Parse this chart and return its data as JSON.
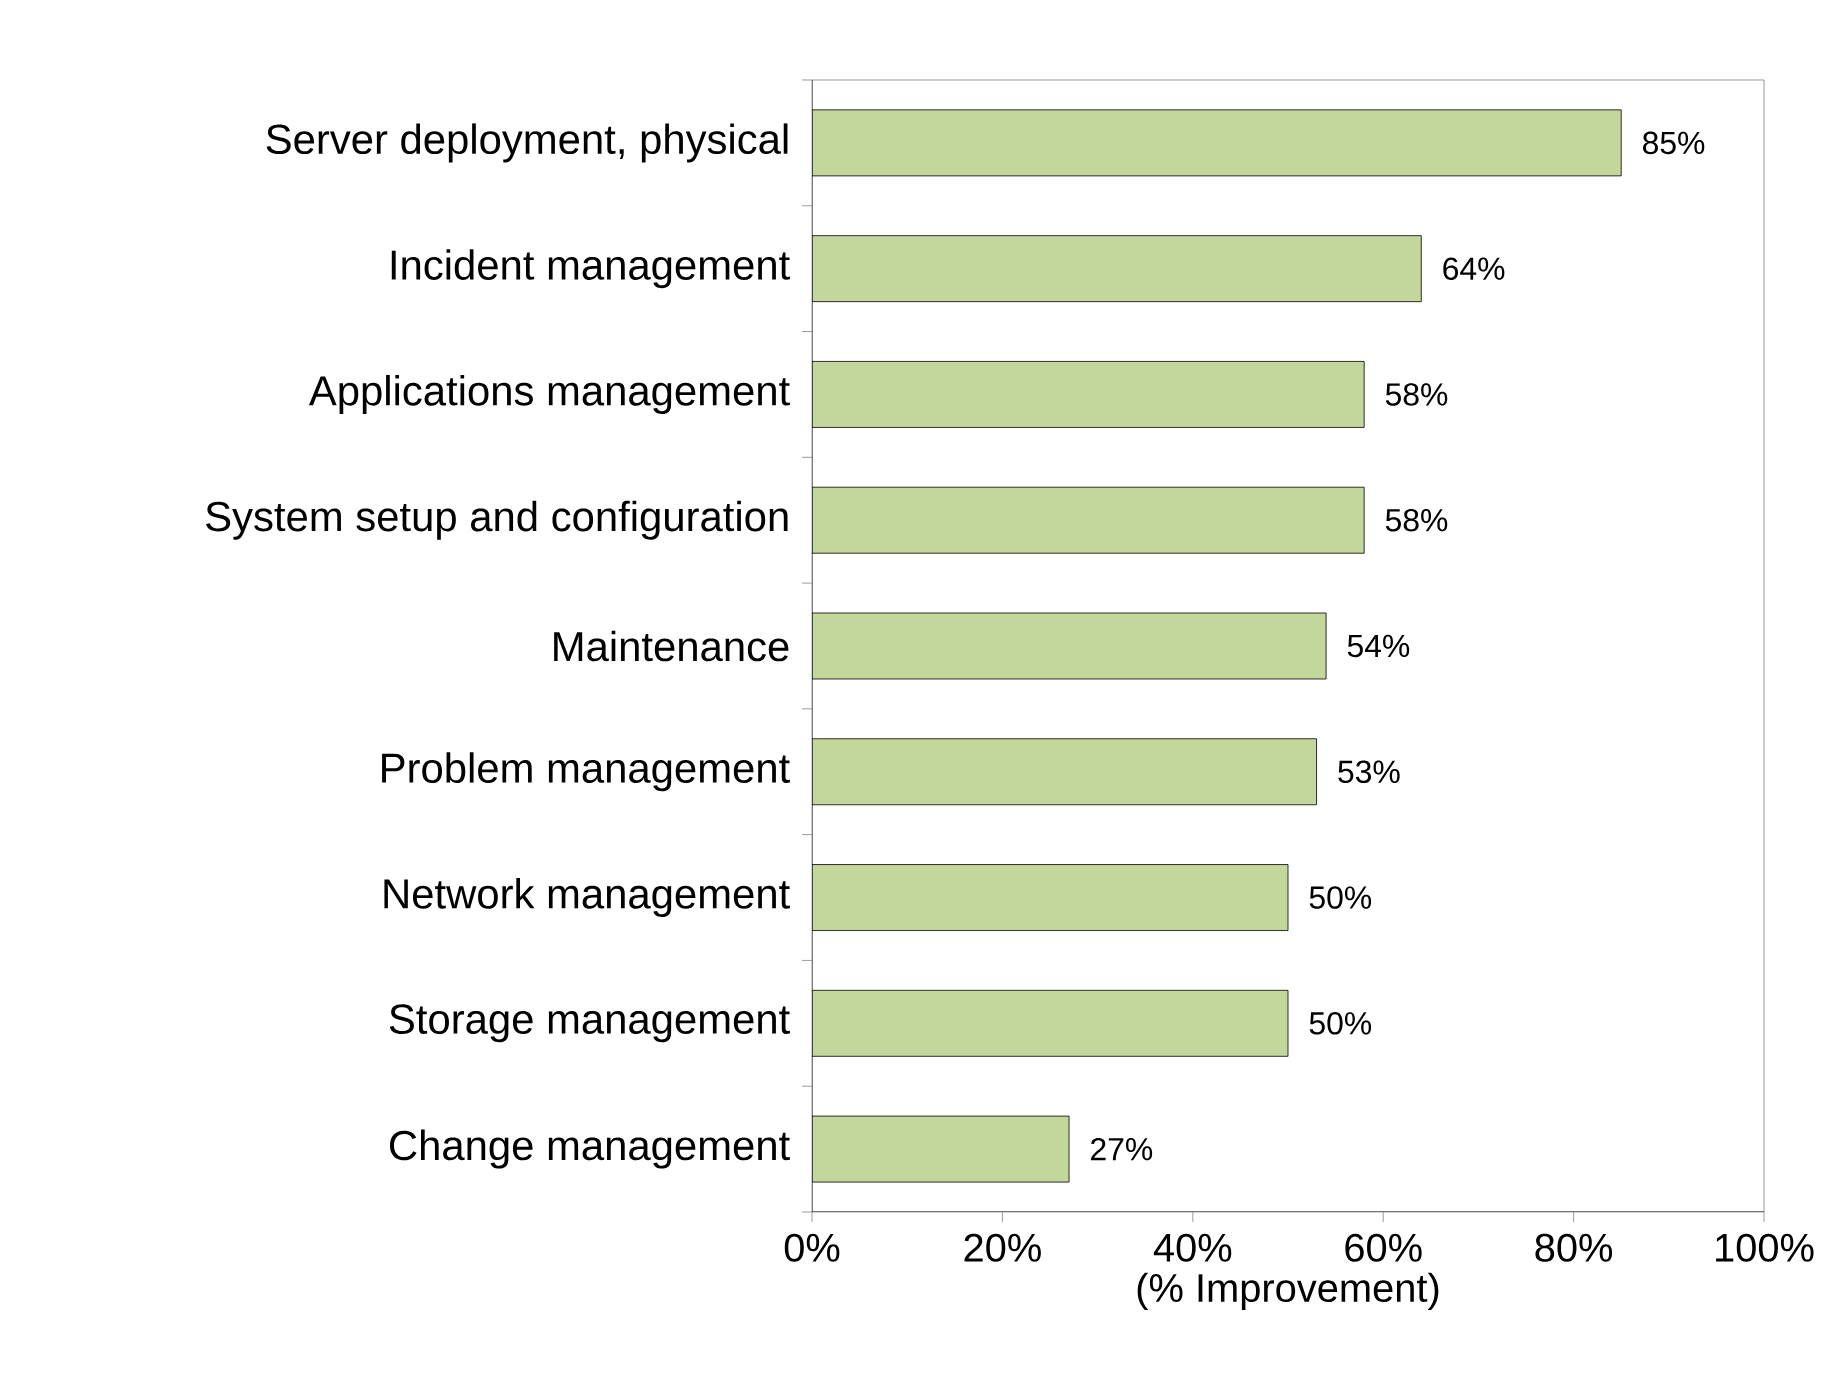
{
  "chart_data": {
    "type": "bar",
    "orientation": "horizontal",
    "xlabel": "(% Improvement)",
    "categories": [
      "Server deployment, physical",
      "Incident management",
      "Applications management",
      "System setup and configuration",
      "Maintenance",
      "Problem management",
      "Network management",
      "Storage management",
      "Change management"
    ],
    "values": [
      85,
      64,
      58,
      58,
      54,
      53,
      50,
      50,
      27
    ],
    "value_labels": [
      "85%",
      "64%",
      "58%",
      "58%",
      "54%",
      "53%",
      "50%",
      "50%",
      "27%"
    ],
    "color": "#c3d69b",
    "xlim": [
      0,
      100
    ],
    "xticks": [
      {
        "value": 0,
        "label": "0%"
      },
      {
        "value": 20,
        "label": "20%"
      },
      {
        "value": 40,
        "label": "40%"
      },
      {
        "value": 60,
        "label": "60%"
      },
      {
        "value": 80,
        "label": "80%"
      },
      {
        "value": 100,
        "label": "100%"
      }
    ],
    "grid": false
  }
}
